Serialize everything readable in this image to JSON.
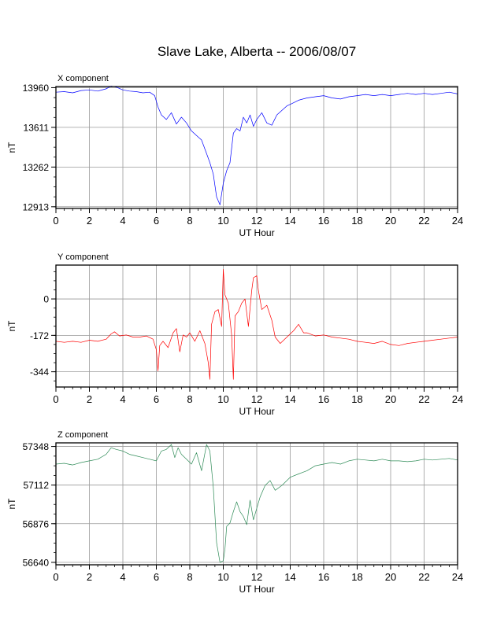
{
  "page": {
    "title": "Slave Lake, Alberta -- 2006/08/07"
  },
  "chart_data": [
    {
      "type": "line",
      "panel_label": "X component",
      "xlabel": "UT Hour",
      "ylabel": "nT",
      "xlim": [
        0,
        24
      ],
      "x_ticks": [
        0,
        2,
        4,
        6,
        8,
        10,
        12,
        14,
        16,
        18,
        20,
        22,
        24
      ],
      "ylim": [
        12898,
        13970
      ],
      "y_ticks": [
        12913,
        13262,
        13611,
        13960
      ],
      "grid": true,
      "color": "#0000ff",
      "series": [
        {
          "x": [
            0,
            0.5,
            1,
            1.5,
            2,
            2.5,
            3,
            3.3,
            3.6,
            4,
            4.4,
            4.8,
            5.2,
            5.6,
            5.9,
            6.1,
            6.3,
            6.6,
            6.9,
            7.2,
            7.5,
            7.8,
            8.1,
            8.4,
            8.7,
            9,
            9.2,
            9.4,
            9.6,
            9.8,
            10,
            10.2,
            10.4,
            10.6,
            10.8,
            11,
            11.2,
            11.4,
            11.6,
            11.8,
            12,
            12.3,
            12.6,
            12.9,
            13.2,
            13.5,
            13.8,
            14.1,
            14.5,
            15,
            15.5,
            16,
            16.5,
            17,
            17.5,
            18,
            18.5,
            19,
            19.5,
            20,
            20.5,
            21,
            21.5,
            22,
            22.5,
            23,
            23.5,
            24
          ],
          "y": [
            13920,
            13925,
            13915,
            13935,
            13940,
            13930,
            13950,
            13975,
            13965,
            13940,
            13930,
            13925,
            13915,
            13920,
            13890,
            13790,
            13720,
            13680,
            13740,
            13640,
            13700,
            13650,
            13580,
            13540,
            13500,
            13380,
            13300,
            13200,
            13000,
            12930,
            13120,
            13230,
            13300,
            13560,
            13600,
            13580,
            13700,
            13650,
            13720,
            13620,
            13680,
            13740,
            13650,
            13630,
            13720,
            13760,
            13800,
            13820,
            13850,
            13870,
            13880,
            13890,
            13870,
            13860,
            13880,
            13890,
            13900,
            13890,
            13900,
            13890,
            13900,
            13910,
            13900,
            13910,
            13900,
            13910,
            13920,
            13905
          ]
        }
      ]
    },
    {
      "type": "line",
      "panel_label": "Y component",
      "xlabel": "UT Hour",
      "ylabel": "nT",
      "xlim": [
        0,
        24
      ],
      "x_ticks": [
        0,
        2,
        4,
        6,
        8,
        10,
        12,
        14,
        16,
        18,
        20,
        22,
        24
      ],
      "ylim": [
        -416,
        160
      ],
      "y_ticks": [
        -344,
        -172,
        0
      ],
      "grid": true,
      "color": "#ff0000",
      "series": [
        {
          "x": [
            0,
            0.5,
            1,
            1.5,
            2,
            2.5,
            3,
            3.3,
            3.5,
            3.8,
            4.2,
            4.6,
            5,
            5.4,
            5.8,
            6,
            6.1,
            6.2,
            6.4,
            6.7,
            7,
            7.2,
            7.4,
            7.6,
            7.8,
            8,
            8.3,
            8.6,
            8.9,
            9.1,
            9.2,
            9.3,
            9.5,
            9.7,
            9.9,
            10,
            10.1,
            10.3,
            10.5,
            10.6,
            10.7,
            10.9,
            11.1,
            11.3,
            11.5,
            11.7,
            11.8,
            12,
            12.1,
            12.3,
            12.6,
            12.9,
            13.1,
            13.4,
            13.8,
            14.2,
            14.5,
            14.8,
            15,
            15.5,
            16,
            16.5,
            17,
            17.5,
            18,
            18.5,
            19,
            19.5,
            20,
            20.5,
            21,
            21.5,
            22,
            22.5,
            23,
            23.5,
            24
          ],
          "y": [
            -200,
            -205,
            -200,
            -205,
            -195,
            -200,
            -190,
            -165,
            -155,
            -175,
            -170,
            -180,
            -180,
            -175,
            -190,
            -240,
            -340,
            -220,
            -200,
            -230,
            -160,
            -140,
            -250,
            -170,
            -180,
            -160,
            -200,
            -150,
            -210,
            -300,
            -380,
            -120,
            -60,
            -50,
            -130,
            140,
            20,
            -20,
            -170,
            -380,
            -80,
            -60,
            -20,
            0,
            -130,
            40,
            100,
            110,
            40,
            -50,
            -30,
            -100,
            -180,
            -210,
            -180,
            -150,
            -120,
            -160,
            -160,
            -175,
            -170,
            -180,
            -185,
            -190,
            -200,
            -205,
            -210,
            -200,
            -215,
            -220,
            -210,
            -205,
            -200,
            -195,
            -190,
            -185,
            -180
          ]
        }
      ]
    },
    {
      "type": "line",
      "panel_label": "Z component",
      "xlabel": "UT Hour",
      "ylabel": "nT",
      "xlim": [
        0,
        24
      ],
      "x_ticks": [
        0,
        2,
        4,
        6,
        8,
        10,
        12,
        14,
        16,
        18,
        20,
        22,
        24
      ],
      "ylim": [
        56625,
        57370
      ],
      "y_ticks": [
        56640,
        56876,
        57112,
        57348
      ],
      "grid": true,
      "color": "#2e8b57",
      "series": [
        {
          "x": [
            0,
            0.5,
            1,
            1.5,
            2,
            2.5,
            3,
            3.3,
            3.6,
            4,
            4.4,
            4.8,
            5.2,
            5.6,
            6,
            6.3,
            6.6,
            6.9,
            7.1,
            7.3,
            7.5,
            7.8,
            8.1,
            8.4,
            8.7,
            9,
            9.2,
            9.4,
            9.6,
            9.8,
            10,
            10.1,
            10.2,
            10.4,
            10.6,
            10.8,
            11,
            11.2,
            11.4,
            11.6,
            11.8,
            12,
            12.2,
            12.5,
            12.8,
            13.1,
            13.5,
            14,
            14.5,
            15,
            15.5,
            16,
            16.5,
            17,
            17.5,
            18,
            18.5,
            19,
            19.5,
            20,
            20.5,
            21,
            21.5,
            22,
            22.5,
            23,
            23.5,
            24
          ],
          "y": [
            57240,
            57245,
            57235,
            57250,
            57260,
            57270,
            57300,
            57340,
            57330,
            57320,
            57300,
            57290,
            57280,
            57270,
            57260,
            57320,
            57330,
            57360,
            57280,
            57340,
            57300,
            57270,
            57240,
            57310,
            57200,
            57360,
            57320,
            57100,
            56760,
            56640,
            56650,
            56720,
            56860,
            56880,
            56950,
            57010,
            56950,
            56920,
            56870,
            57020,
            56900,
            56970,
            57040,
            57110,
            57140,
            57080,
            57110,
            57160,
            57180,
            57200,
            57230,
            57240,
            57250,
            57240,
            57260,
            57270,
            57265,
            57260,
            57270,
            57260,
            57260,
            57255,
            57260,
            57270,
            57265,
            57270,
            57275,
            57265
          ]
        }
      ]
    }
  ]
}
